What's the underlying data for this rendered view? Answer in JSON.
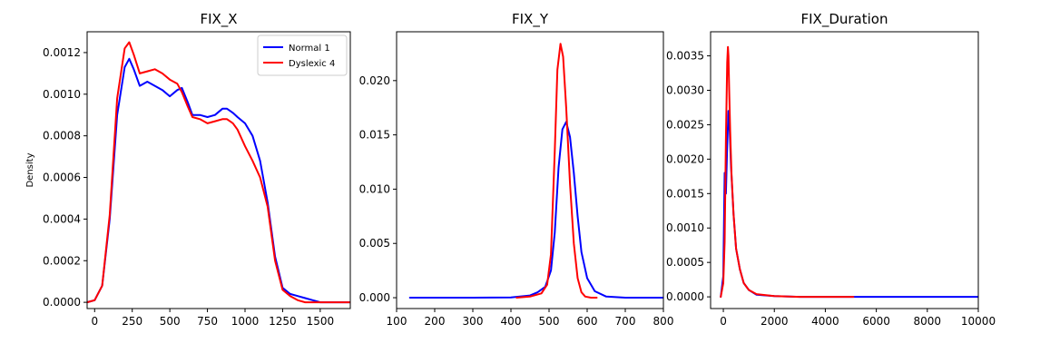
{
  "chart_data": [
    {
      "type": "line",
      "title": "FIX_X",
      "xlabel": "",
      "ylabel": "Density",
      "xlim": [
        -50,
        1700
      ],
      "ylim": [
        -3e-05,
        0.0013
      ],
      "xticks": [
        0,
        250,
        500,
        750,
        1000,
        1250,
        1500
      ],
      "xtick_labels": [
        "0",
        "250",
        "500",
        "750",
        "1000",
        "1250",
        "1500"
      ],
      "yticks": [
        0,
        0.0002,
        0.0004,
        0.0006,
        0.0008,
        0.001,
        0.0012
      ],
      "ytick_labels": [
        "0.0000",
        "0.0002",
        "0.0004",
        "0.0006",
        "0.0008",
        "0.0010",
        "0.0012"
      ],
      "legend": "top-right",
      "series": [
        {
          "name": "Normal 1",
          "color": "#0000ff",
          "x": [
            -50,
            0,
            50,
            100,
            150,
            200,
            230,
            260,
            300,
            350,
            400,
            450,
            500,
            550,
            580,
            620,
            650,
            700,
            750,
            800,
            850,
            880,
            920,
            950,
            1000,
            1050,
            1100,
            1150,
            1200,
            1250,
            1300,
            1350,
            1400,
            1450,
            1500,
            1600,
            1700
          ],
          "y": [
            0,
            1e-05,
            8e-05,
            0.0004,
            0.0009,
            0.00113,
            0.00117,
            0.00112,
            0.00104,
            0.00106,
            0.00104,
            0.00102,
            0.00099,
            0.00102,
            0.00103,
            0.00096,
            0.0009,
            0.0009,
            0.00089,
            0.0009,
            0.00093,
            0.00093,
            0.00091,
            0.00089,
            0.00086,
            0.0008,
            0.00068,
            0.00048,
            0.00022,
            7e-05,
            4e-05,
            3e-05,
            2e-05,
            1e-05,
            0,
            0,
            0
          ]
        },
        {
          "name": "Dyslexic 4",
          "color": "#ff0000",
          "x": [
            -50,
            0,
            50,
            100,
            150,
            200,
            230,
            260,
            300,
            350,
            400,
            450,
            500,
            550,
            580,
            620,
            650,
            700,
            750,
            800,
            850,
            880,
            920,
            950,
            1000,
            1050,
            1100,
            1150,
            1200,
            1250,
            1300,
            1350,
            1400,
            1450,
            1500,
            1600,
            1700
          ],
          "y": [
            0,
            1e-05,
            8e-05,
            0.00042,
            0.00098,
            0.00122,
            0.00125,
            0.00119,
            0.0011,
            0.00111,
            0.00112,
            0.0011,
            0.00107,
            0.00105,
            0.00101,
            0.00094,
            0.00089,
            0.00088,
            0.00086,
            0.00087,
            0.00088,
            0.00088,
            0.00086,
            0.00083,
            0.00075,
            0.00068,
            0.0006,
            0.00046,
            0.0002,
            6e-05,
            3e-05,
            1e-05,
            0,
            0,
            0,
            0,
            0
          ]
        }
      ]
    },
    {
      "type": "line",
      "title": "FIX_Y",
      "xlabel": "",
      "ylabel": "",
      "xlim": [
        100,
        800
      ],
      "ylim": [
        -0.001,
        0.0245
      ],
      "xticks": [
        100,
        200,
        300,
        400,
        500,
        600,
        700,
        800
      ],
      "xtick_labels": [
        "100",
        "200",
        "300",
        "400",
        "500",
        "600",
        "700",
        "800"
      ],
      "yticks": [
        0,
        0.005,
        0.01,
        0.015,
        0.02
      ],
      "ytick_labels": [
        "0.000",
        "0.005",
        "0.010",
        "0.015",
        "0.020"
      ],
      "series": [
        {
          "color": "#0000ff",
          "x": [
            135,
            200,
            300,
            400,
            450,
            470,
            490,
            505,
            515,
            525,
            535,
            545,
            555,
            565,
            575,
            585,
            600,
            620,
            650,
            700,
            800
          ],
          "y": [
            0,
            0,
            0,
            2e-05,
            0.0002,
            0.0005,
            0.001,
            0.0025,
            0.006,
            0.012,
            0.0155,
            0.0162,
            0.0148,
            0.0115,
            0.0075,
            0.0042,
            0.0018,
            0.0006,
            0.0001,
            0,
            0
          ]
        },
        {
          "color": "#ff0000",
          "x": [
            415,
            450,
            480,
            495,
            505,
            515,
            522,
            530,
            537,
            545,
            555,
            565,
            575,
            585,
            595,
            610,
            625
          ],
          "y": [
            0,
            0.0001,
            0.0004,
            0.0012,
            0.004,
            0.0135,
            0.021,
            0.0234,
            0.0222,
            0.0175,
            0.0105,
            0.005,
            0.0018,
            0.0005,
            0.0001,
            0,
            0
          ]
        }
      ]
    },
    {
      "type": "line",
      "title": "FIX_Duration",
      "xlabel": "",
      "ylabel": "",
      "xlim": [
        -500,
        10000
      ],
      "ylim": [
        -0.00017,
        0.00385
      ],
      "xticks": [
        0,
        2000,
        4000,
        6000,
        8000,
        10000
      ],
      "xtick_labels": [
        "0",
        "2000",
        "4000",
        "6000",
        "8000",
        "10000"
      ],
      "yticks": [
        0,
        0.0005,
        0.001,
        0.0015,
        0.002,
        0.0025,
        0.003,
        0.0035
      ],
      "ytick_labels": [
        "0.0000",
        "0.0005",
        "0.0010",
        "0.0015",
        "0.0020",
        "0.0025",
        "0.0030",
        "0.0035"
      ],
      "series": [
        {
          "color": "#0000ff",
          "x": [
            -100,
            0,
            50,
            100,
            150,
            200,
            250,
            300,
            400,
            500,
            650,
            800,
            1000,
            1300,
            2000,
            3000,
            5000,
            7000,
            10000
          ],
          "y": [
            0,
            0.0003,
            0.0018,
            0.0015,
            0.0022,
            0.0027,
            0.0024,
            0.0019,
            0.0012,
            0.0007,
            0.0004,
            0.0002,
            0.0001,
            3e-05,
            1e-05,
            0,
            0,
            0,
            0
          ]
        },
        {
          "color": "#ff0000",
          "x": [
            -100,
            0,
            50,
            100,
            150,
            180,
            200,
            230,
            270,
            320,
            400,
            500,
            650,
            800,
            1000,
            1300,
            2000,
            3000,
            4000,
            5100
          ],
          "y": [
            0,
            0.0002,
            0.0008,
            0.0023,
            0.0034,
            0.00363,
            0.0035,
            0.003,
            0.0024,
            0.0018,
            0.0012,
            0.0007,
            0.0004,
            0.0002,
            0.0001,
            4e-05,
            1e-05,
            0,
            0,
            0
          ]
        }
      ]
    }
  ]
}
